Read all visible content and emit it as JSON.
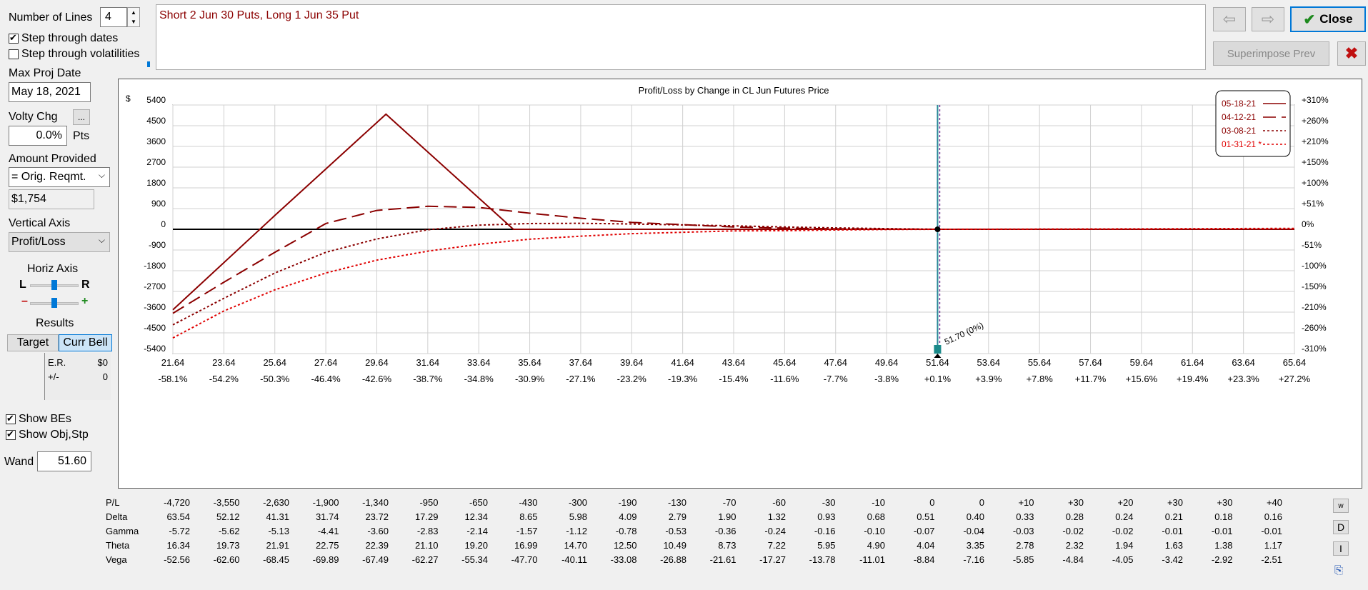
{
  "controls": {
    "number_of_lines_label": "Number of Lines",
    "number_of_lines_value": "4",
    "step_dates_label": "Step through dates",
    "step_vols_label": "Step through volatilities",
    "max_proj_date_label": "Max Proj Date",
    "max_proj_date_value": "May 18, 2021",
    "volty_chg_label": "Volty Chg",
    "volty_chg_button": "...",
    "volty_chg_value": "0.0%",
    "volty_chg_unit": "Pts",
    "amount_provided_label": "Amount Provided",
    "amount_provided_select": "= Orig. Reqmt.",
    "amount_value": "$1,754",
    "vertical_axis_label": "Vertical Axis",
    "vertical_axis_select": "Profit/Loss",
    "horiz_axis_label": "Horiz Axis",
    "horiz_l": "L",
    "horiz_r": "R",
    "zoom_minus": "–",
    "zoom_plus": "+",
    "results_label": "Results",
    "target_button": "Target",
    "curr_bell_button": "Curr Bell",
    "er_label": "E.R.",
    "er_value": "$0",
    "pm_label": "+/-",
    "pm_value": "0",
    "show_bes_label": "Show BEs",
    "show_obj_label": "Show Obj,Stp",
    "wand_label": "Wand",
    "wand_value": "51.60"
  },
  "description": "Short 2 Jun 30 Puts, Long 1 Jun 35 Put",
  "buttons": {
    "back_icon": "arrow-left-icon",
    "forward_icon": "arrow-right-icon",
    "close_label": "Close",
    "superimpose_label": "Superimpose Prev",
    "delete_icon": "x-icon"
  },
  "colors": {
    "dark_red": "#8b0000",
    "red": "#e00000",
    "vline_teal": "#2b8a99",
    "vline_purple": "#7a3b9a",
    "close_check": "#1f8a1f",
    "x_red": "#c01010"
  },
  "chart_data": {
    "type": "line",
    "title": "Profit/Loss by Change in CL Jun Futures Price",
    "ylabel": "$",
    "xlim": [
      21.64,
      65.64
    ],
    "ylim": [
      -5400,
      5400
    ],
    "x_ticks": [
      "21.64",
      "23.64",
      "25.64",
      "27.64",
      "29.64",
      "31.64",
      "33.64",
      "35.64",
      "37.64",
      "39.64",
      "41.64",
      "43.64",
      "45.64",
      "47.64",
      "49.64",
      "51.64",
      "53.64",
      "55.64",
      "57.64",
      "59.64",
      "61.64",
      "63.64",
      "65.64"
    ],
    "x_pct_ticks": [
      "-58.1%",
      "-54.2%",
      "-50.3%",
      "-46.4%",
      "-42.6%",
      "-38.7%",
      "-34.8%",
      "-30.9%",
      "-27.1%",
      "-23.2%",
      "-19.3%",
      "-15.4%",
      "-11.6%",
      "-7.7%",
      "-3.8%",
      "+0.1%",
      "+3.9%",
      "+7.8%",
      "+11.7%",
      "+15.6%",
      "+19.4%",
      "+23.3%",
      "+27.2%"
    ],
    "y_ticks": [
      5400,
      4500,
      3600,
      2700,
      1800,
      900,
      0,
      -900,
      -1800,
      -2700,
      -3600,
      -4500,
      -5400
    ],
    "y_tick_labels": [
      "5400",
      "4500",
      "3600",
      "2700",
      "1800",
      "900",
      "0",
      "-900",
      "-1800",
      "-2700",
      "-3600",
      "-4500",
      "-5400"
    ],
    "y2_tick_labels": [
      "+310%",
      "+260%",
      "+210%",
      "+150%",
      "+100%",
      "+51%",
      "0%",
      "-51%",
      "-100%",
      "-150%",
      "-210%",
      "-260%",
      "-310%"
    ],
    "series": [
      {
        "name": "05-18-21",
        "style": "solid",
        "color": "#8b0000",
        "x": [
          21.64,
          25.64,
          30,
          35,
          65.64
        ],
        "y": [
          -3500,
          600,
          5000,
          0,
          0
        ]
      },
      {
        "name": "04-12-21",
        "style": "longdash",
        "color": "#8b0000",
        "x": [
          21.64,
          23.64,
          25.64,
          27.64,
          29.64,
          31.64,
          33.64,
          35.64,
          37.64,
          39.64,
          41.64,
          43.64,
          45.64,
          47.64,
          49.64,
          51.64,
          55.64,
          59.64,
          65.64
        ],
        "y": [
          -3650,
          -2300,
          -1000,
          250,
          820,
          1000,
          950,
          700,
          480,
          300,
          200,
          100,
          50,
          20,
          10,
          0,
          0,
          0,
          0
        ]
      },
      {
        "name": "03-08-21",
        "style": "dotted",
        "color": "#8b0000",
        "x": [
          21.64,
          23.64,
          25.64,
          27.64,
          29.64,
          31.64,
          33.64,
          35.64,
          37.64,
          39.64,
          41.64,
          43.64,
          45.64,
          47.64,
          49.64,
          51.64,
          55.64,
          59.64,
          65.64
        ],
        "y": [
          -4150,
          -3000,
          -1900,
          -1000,
          -420,
          -20,
          180,
          250,
          260,
          230,
          190,
          150,
          100,
          60,
          30,
          0,
          0,
          0,
          0
        ]
      },
      {
        "name": "01-31-21 *",
        "style": "dotted",
        "color": "#e00000",
        "x": [
          21.64,
          23.64,
          25.64,
          27.64,
          29.64,
          31.64,
          33.64,
          35.64,
          37.64,
          39.64,
          41.64,
          43.64,
          45.64,
          47.64,
          49.64,
          51.64,
          55.64,
          59.64,
          65.64
        ],
        "y": [
          -4720,
          -3550,
          -2630,
          -1900,
          -1340,
          -950,
          -650,
          -430,
          -300,
          -190,
          -130,
          -70,
          -60,
          -30,
          -10,
          0,
          10,
          20,
          40
        ]
      }
    ],
    "current_price": 51.64,
    "marker_label": "51.70 (0%)",
    "legend_position": "top-right",
    "grid": true
  },
  "table": {
    "rows": [
      {
        "label": "P/L",
        "values": [
          "-4,720",
          "-3,550",
          "-2,630",
          "-1,900",
          "-1,340",
          "-950",
          "-650",
          "-430",
          "-300",
          "-190",
          "-130",
          "-70",
          "-60",
          "-30",
          "-10",
          "0",
          "0",
          "+10",
          "+30",
          "+20",
          "+30",
          "+30",
          "+40"
        ]
      },
      {
        "label": "Delta",
        "values": [
          "63.54",
          "52.12",
          "41.31",
          "31.74",
          "23.72",
          "17.29",
          "12.34",
          "8.65",
          "5.98",
          "4.09",
          "2.79",
          "1.90",
          "1.32",
          "0.93",
          "0.68",
          "0.51",
          "0.40",
          "0.33",
          "0.28",
          "0.24",
          "0.21",
          "0.18",
          "0.16"
        ]
      },
      {
        "label": "Gamma",
        "values": [
          "-5.72",
          "-5.62",
          "-5.13",
          "-4.41",
          "-3.60",
          "-2.83",
          "-2.14",
          "-1.57",
          "-1.12",
          "-0.78",
          "-0.53",
          "-0.36",
          "-0.24",
          "-0.16",
          "-0.10",
          "-0.07",
          "-0.04",
          "-0.03",
          "-0.02",
          "-0.02",
          "-0.01",
          "-0.01",
          "-0.01"
        ]
      },
      {
        "label": "Theta",
        "values": [
          "16.34",
          "19.73",
          "21.91",
          "22.75",
          "22.39",
          "21.10",
          "19.20",
          "16.99",
          "14.70",
          "12.50",
          "10.49",
          "8.73",
          "7.22",
          "5.95",
          "4.90",
          "4.04",
          "3.35",
          "2.78",
          "2.32",
          "1.94",
          "1.63",
          "1.38",
          "1.17"
        ]
      },
      {
        "label": "Vega",
        "values": [
          "-52.56",
          "-62.60",
          "-68.45",
          "-69.89",
          "-67.49",
          "-62.27",
          "-55.34",
          "-47.70",
          "-40.11",
          "-33.08",
          "-26.88",
          "-21.61",
          "-17.27",
          "-13.78",
          "-11.01",
          "-8.84",
          "-7.16",
          "-5.85",
          "-4.84",
          "-4.05",
          "-3.42",
          "-2.92",
          "-2.51"
        ]
      }
    ],
    "side_buttons": [
      {
        "name": "w-button",
        "label": "w"
      },
      {
        "name": "d-button",
        "label": "D"
      },
      {
        "name": "i-button",
        "label": "I"
      },
      {
        "name": "export-icon",
        "label": ""
      }
    ]
  }
}
